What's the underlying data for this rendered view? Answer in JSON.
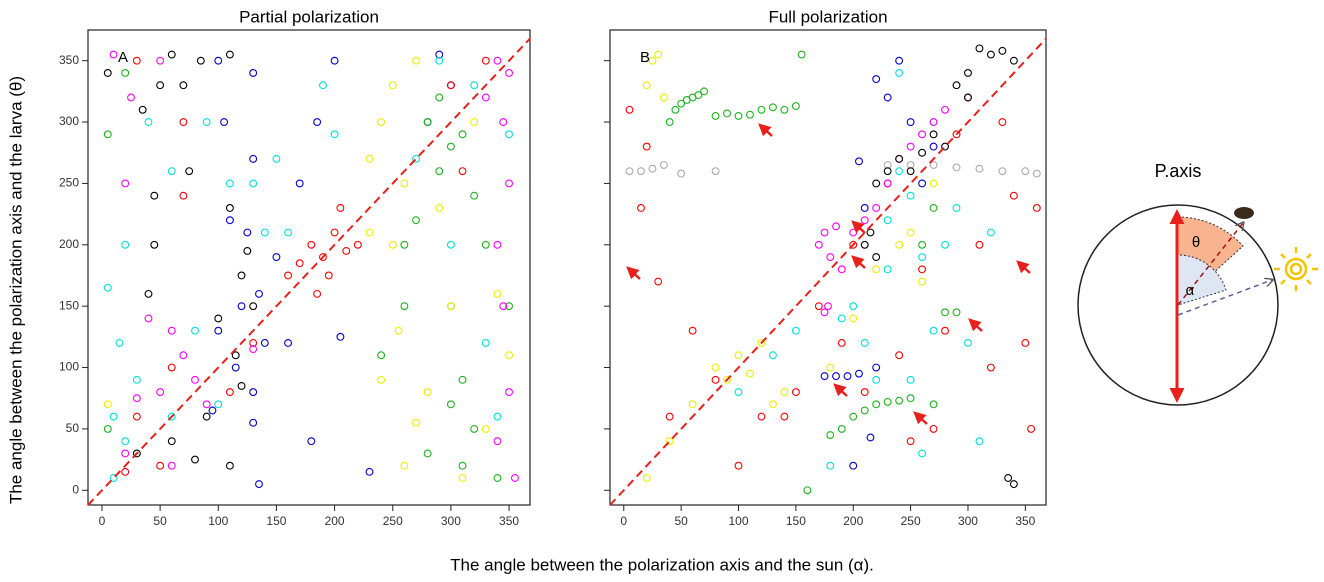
{
  "labels": {
    "x": "The angle between the polarization axis and the sun (α).",
    "y": "The angle between the polarization axis and the larva (θ)"
  },
  "diagram": {
    "title": "P.axis",
    "theta": "θ",
    "alpha": "α"
  },
  "chart_data": [
    {
      "type": "scatter",
      "title": "Partial polarization",
      "panel_label": "A",
      "xlim": [
        -12,
        368
      ],
      "ylim": [
        -12,
        375
      ],
      "xticks": [
        0,
        50,
        100,
        150,
        200,
        250,
        300,
        350
      ],
      "yticks": [
        0,
        50,
        100,
        150,
        200,
        250,
        300,
        350
      ],
      "ytick_labels": true,
      "diagonal_line": true,
      "diagonal_color": "#e8201c",
      "series": [
        {
          "color": "#000000",
          "x": [
            5,
            35,
            50,
            60,
            70,
            75,
            85,
            110,
            45,
            40,
            110,
            120,
            130,
            115,
            90,
            60,
            80,
            30,
            110,
            120,
            45,
            100,
            125
          ],
          "y": [
            340,
            310,
            330,
            355,
            330,
            260,
            350,
            355,
            240,
            160,
            230,
            175,
            150,
            110,
            60,
            40,
            25,
            30,
            20,
            85,
            200,
            140,
            195
          ]
        },
        {
          "color": "#0000cc",
          "x": [
            100,
            130,
            105,
            130,
            110,
            125,
            135,
            120,
            100,
            140,
            115,
            130,
            95,
            130,
            150,
            170,
            185,
            200,
            205,
            180,
            230,
            290,
            300,
            280,
            135,
            160
          ],
          "y": [
            350,
            340,
            300,
            270,
            220,
            210,
            160,
            150,
            130,
            120,
            100,
            80,
            65,
            55,
            190,
            250,
            300,
            350,
            125,
            40,
            15,
            355,
            330,
            300,
            5,
            120
          ]
        },
        {
          "color": "#ff0000",
          "x": [
            30,
            70,
            70,
            160,
            170,
            180,
            190,
            200,
            210,
            195,
            205,
            220,
            185,
            50,
            30,
            110,
            130,
            330,
            310,
            300,
            20,
            60
          ],
          "y": [
            350,
            300,
            240,
            175,
            185,
            200,
            190,
            210,
            195,
            175,
            230,
            200,
            160,
            20,
            60,
            80,
            120,
            350,
            260,
            330,
            15,
            100
          ]
        },
        {
          "color": "#1db31d",
          "x": [
            5,
            20,
            280,
            300,
            290,
            310,
            320,
            270,
            260,
            240,
            300,
            320,
            280,
            340,
            350,
            300,
            310,
            330,
            260,
            5,
            310,
            290
          ],
          "y": [
            290,
            340,
            300,
            280,
            260,
            290,
            240,
            220,
            200,
            110,
            70,
            50,
            30,
            10,
            150,
            150,
            90,
            200,
            150,
            50,
            20,
            320
          ]
        },
        {
          "color": "#00e0e0",
          "x": [
            5,
            20,
            15,
            40,
            60,
            90,
            110,
            150,
            190,
            200,
            160,
            30,
            60,
            20,
            10,
            80,
            100,
            140,
            130,
            330,
            340,
            290,
            320,
            350,
            270,
            300,
            10
          ],
          "y": [
            165,
            200,
            120,
            300,
            260,
            300,
            250,
            270,
            330,
            290,
            210,
            90,
            60,
            40,
            10,
            130,
            70,
            210,
            250,
            120,
            60,
            350,
            330,
            290,
            270,
            200,
            60
          ]
        },
        {
          "color": "#ff00ff",
          "x": [
            10,
            25,
            50,
            20,
            40,
            60,
            70,
            80,
            50,
            30,
            20,
            90,
            130,
            60,
            340,
            345,
            350,
            340,
            345,
            350,
            340,
            355,
            330,
            350
          ],
          "y": [
            355,
            320,
            350,
            250,
            140,
            130,
            110,
            90,
            80,
            75,
            30,
            70,
            115,
            20,
            350,
            300,
            250,
            200,
            150,
            80,
            40,
            10,
            320,
            340
          ]
        },
        {
          "color": "#eeee00",
          "x": [
            240,
            250,
            230,
            260,
            270,
            255,
            240,
            270,
            260,
            300,
            280,
            320,
            340,
            350,
            310,
            290,
            5,
            230,
            250,
            330
          ],
          "y": [
            300,
            200,
            270,
            250,
            350,
            130,
            90,
            55,
            20,
            150,
            80,
            300,
            160,
            110,
            10,
            230,
            70,
            210,
            330,
            50
          ]
        }
      ]
    },
    {
      "type": "scatter",
      "title": "Full polarization",
      "panel_label": "B",
      "xlim": [
        -12,
        368
      ],
      "ylim": [
        -12,
        375
      ],
      "xticks": [
        0,
        50,
        100,
        150,
        200,
        250,
        300,
        350
      ],
      "yticks": [
        0,
        50,
        100,
        150,
        200,
        250,
        300,
        350
      ],
      "ytick_labels": false,
      "diagonal_line": true,
      "diagonal_color": "#e8201c",
      "series": [
        {
          "color": "#aaaaaa",
          "x": [
            5,
            15,
            25,
            35,
            50,
            80,
            230,
            250,
            270,
            290,
            310,
            330,
            350,
            360
          ],
          "y": [
            260,
            260,
            262,
            265,
            258,
            260,
            265,
            265,
            265,
            263,
            262,
            260,
            260,
            258
          ]
        },
        {
          "color": "#ff0000",
          "x": [
            5,
            20,
            15,
            30,
            40,
            60,
            80,
            100,
            120,
            140,
            150,
            170,
            190,
            200,
            210,
            230,
            240,
            250,
            260,
            280,
            290,
            300,
            310,
            320,
            330,
            340,
            350,
            355,
            360,
            270
          ],
          "y": [
            310,
            280,
            230,
            170,
            60,
            130,
            90,
            20,
            60,
            60,
            80,
            150,
            120,
            200,
            80,
            250,
            110,
            40,
            180,
            130,
            290,
            320,
            200,
            100,
            300,
            240,
            120,
            50,
            230,
            50
          ]
        },
        {
          "color": "#1db31d",
          "x": [
            40,
            45,
            50,
            55,
            60,
            65,
            70,
            80,
            90,
            100,
            110,
            120,
            130,
            140,
            150,
            155,
            200,
            210,
            220,
            230,
            240,
            250,
            270,
            280,
            290,
            180,
            190,
            260,
            270,
            160
          ],
          "y": [
            300,
            310,
            315,
            318,
            320,
            322,
            325,
            305,
            307,
            305,
            306,
            310,
            312,
            310,
            313,
            355,
            60,
            65,
            70,
            72,
            73,
            75,
            70,
            145,
            145,
            45,
            50,
            200,
            230,
            0
          ]
        },
        {
          "color": "#0000cc",
          "x": [
            175,
            185,
            195,
            205,
            215,
            205,
            210,
            240,
            220,
            230,
            250,
            260,
            270,
            200,
            220
          ],
          "y": [
            93,
            93,
            93,
            95,
            43,
            268,
            230,
            350,
            335,
            320,
            300,
            250,
            280,
            20,
            100
          ]
        },
        {
          "color": "#eeee00",
          "x": [
            20,
            25,
            30,
            35,
            20,
            40,
            60,
            80,
            90,
            100,
            110,
            120,
            130,
            140,
            180,
            200,
            220,
            240,
            250,
            260,
            270
          ],
          "y": [
            330,
            350,
            355,
            320,
            10,
            40,
            70,
            100,
            90,
            110,
            95,
            120,
            70,
            80,
            100,
            140,
            180,
            200,
            210,
            170,
            250
          ]
        },
        {
          "color": "#00e0e0",
          "x": [
            180,
            190,
            200,
            210,
            220,
            230,
            240,
            250,
            260,
            270,
            280,
            290,
            230,
            250,
            260,
            270,
            300,
            310,
            320,
            100,
            130,
            150,
            240
          ],
          "y": [
            20,
            140,
            150,
            120,
            90,
            220,
            260,
            240,
            190,
            130,
            200,
            230,
            180,
            90,
            30,
            300,
            120,
            40,
            210,
            80,
            110,
            130,
            340
          ]
        },
        {
          "color": "#ff00ff",
          "x": [
            170,
            175,
            180,
            178,
            185,
            190,
            200,
            210,
            220,
            230,
            240,
            250,
            260,
            270,
            280,
            175
          ],
          "y": [
            200,
            210,
            190,
            150,
            215,
            180,
            210,
            220,
            230,
            250,
            270,
            280,
            290,
            300,
            310,
            145
          ]
        },
        {
          "color": "#000000",
          "x": [
            210,
            215,
            220,
            230,
            240,
            250,
            260,
            270,
            280,
            290,
            300,
            310,
            320,
            330,
            340,
            335,
            340,
            300,
            220
          ],
          "y": [
            200,
            210,
            250,
            260,
            270,
            260,
            275,
            290,
            280,
            330,
            340,
            360,
            355,
            358,
            350,
            10,
            5,
            320,
            190
          ]
        }
      ]
    }
  ]
}
